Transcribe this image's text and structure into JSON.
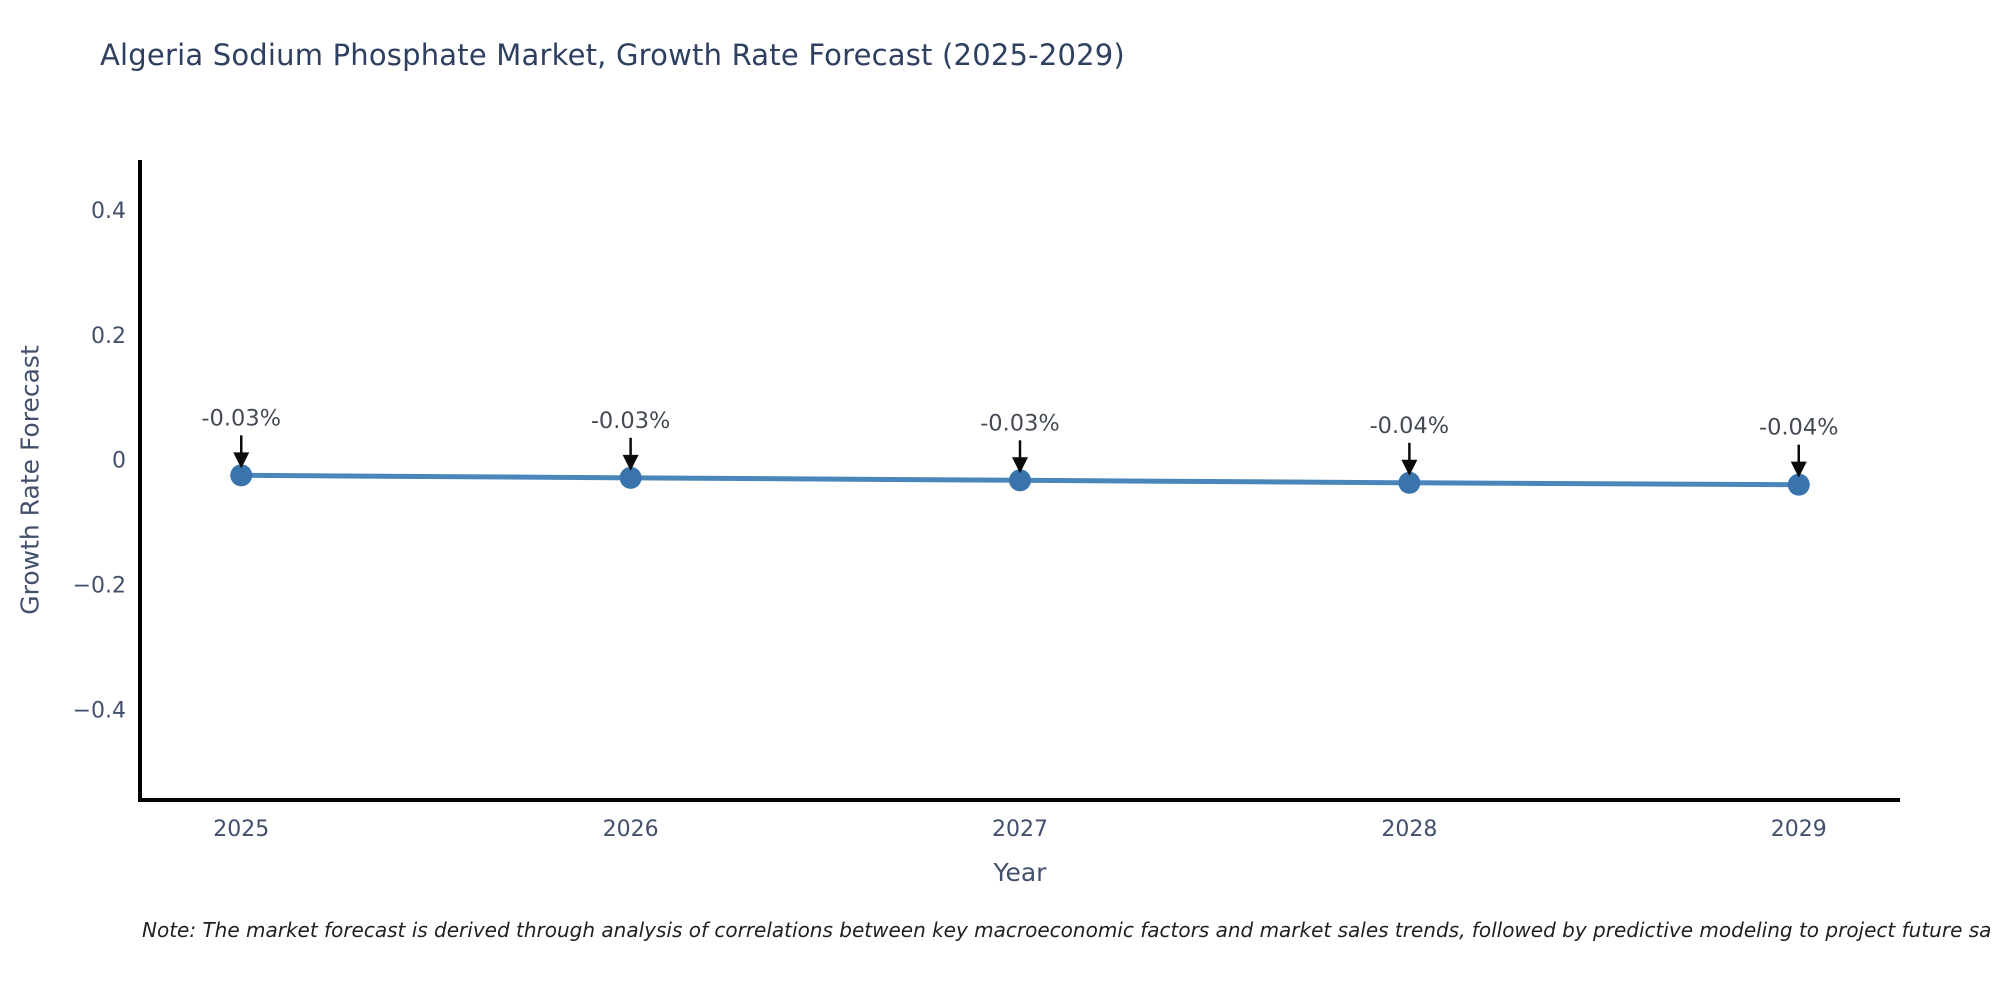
{
  "chart_data": {
    "type": "line",
    "title": "Algeria Sodium Phosphate Market, Growth Rate Forecast (2025-2029)",
    "xlabel": "Year",
    "ylabel": "Growth Rate Forecast",
    "x": [
      2025,
      2026,
      2027,
      2028,
      2029
    ],
    "values": [
      -0.03,
      -0.03,
      -0.03,
      -0.04,
      -0.04
    ],
    "values_precise_est": [
      -0.025,
      -0.029,
      -0.033,
      -0.037,
      -0.04
    ],
    "point_labels": [
      "-0.03%",
      "-0.03%",
      "-0.03%",
      "-0.04%",
      "-0.04%"
    ],
    "xtick_labels": [
      "2025",
      "2026",
      "2027",
      "2028",
      "2029"
    ],
    "yticks": [
      0.4,
      0.2,
      0,
      -0.2,
      -0.4
    ],
    "ytick_labels": [
      "0.4",
      "0.2",
      "0",
      "−0.2",
      "−0.4"
    ],
    "xlim": [
      2024.74,
      2029.26
    ],
    "ylim": [
      -0.545,
      0.48
    ],
    "grid": false,
    "legend": null,
    "annotations_arrow": "down-arrow",
    "colors": {
      "title": "#2e3f5f",
      "label": "#42506b",
      "tick": "#42506b",
      "axis": "#000000",
      "line": "#4a86ba",
      "marker": "#3a74ad",
      "arrow": "#0b0b0b",
      "annotation": "#444a54",
      "note": "#1f1f1f"
    }
  },
  "note": "Note: The market forecast is derived through analysis of correlations between key macroeconomic factors and market sales trends, followed by predictive modeling to project future sa"
}
